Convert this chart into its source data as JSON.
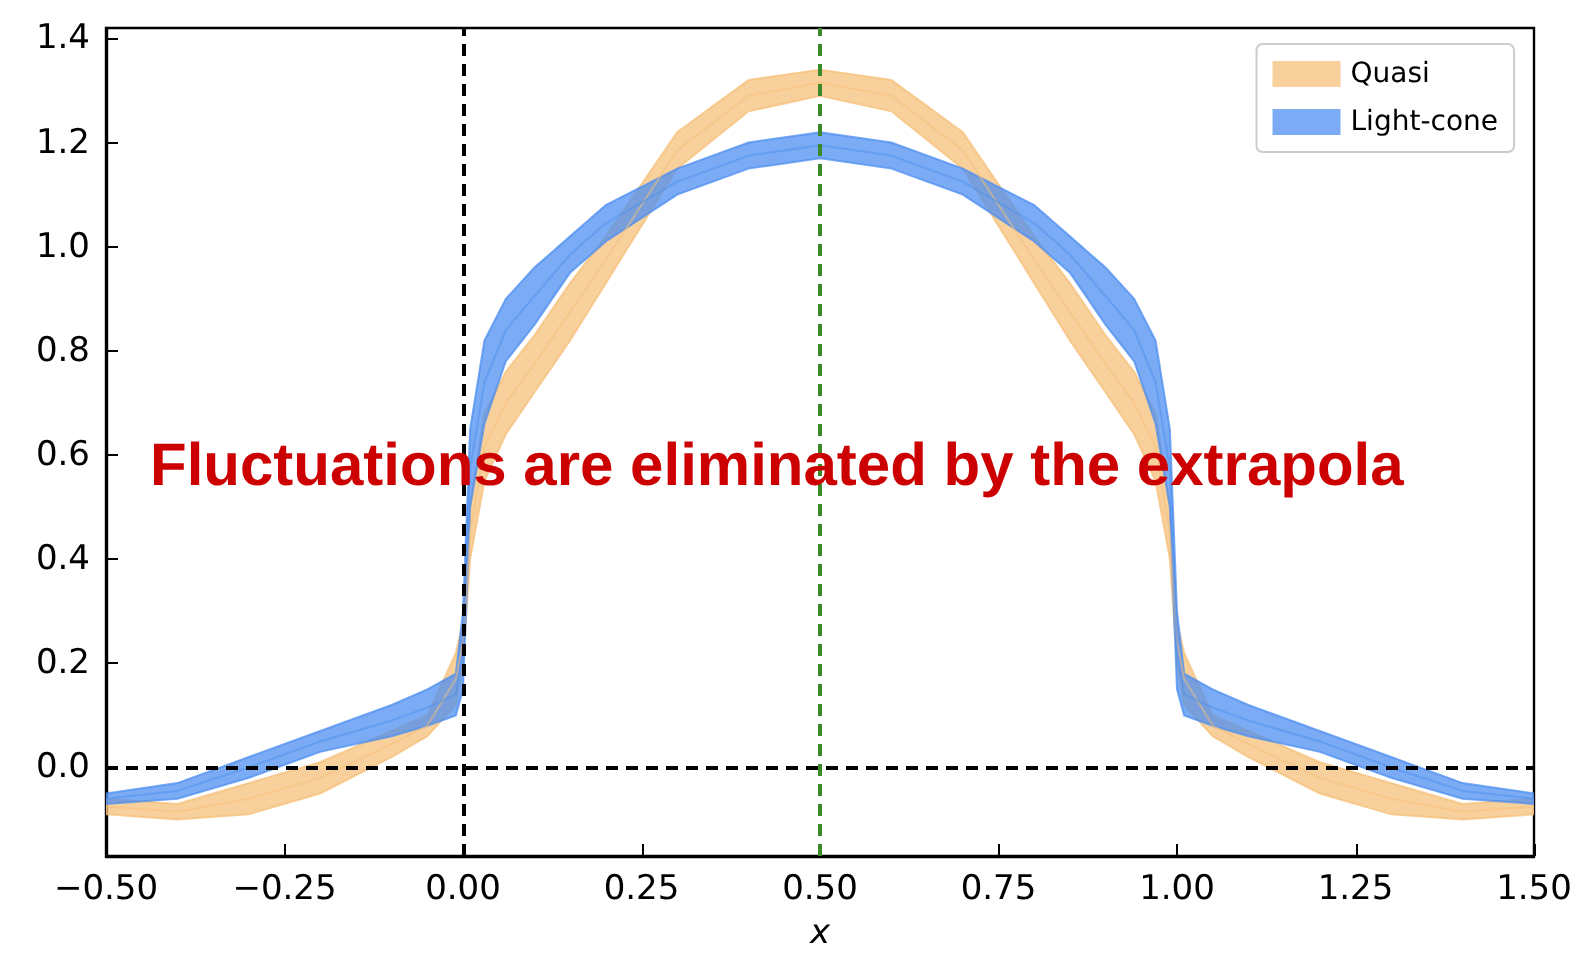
{
  "chart_data": {
    "type": "line",
    "xlabel": "x",
    "annotations": [
      "Fluctuations are eliminated by the extrapola"
    ],
    "x": [
      -0.5,
      -0.4,
      -0.3,
      -0.2,
      -0.1,
      -0.05,
      -0.01,
      0,
      0.01,
      0.03,
      0.06,
      0.1,
      0.15,
      0.2,
      0.3,
      0.4,
      0.5,
      0.6,
      0.7,
      0.8,
      0.85,
      0.9,
      0.94,
      0.97,
      0.99,
      1,
      1.01,
      1.05,
      1.1,
      1.2,
      1.3,
      1.4,
      1.5
    ],
    "series": [
      {
        "name": "Quasi",
        "color": "#f5c07a",
        "values": [
          -0.075,
          -0.085,
          -0.06,
          -0.02,
          0.045,
          0.08,
          0.17,
          0.24,
          0.45,
          0.615,
          0.7,
          0.775,
          0.875,
          0.975,
          1.185,
          1.29,
          1.315,
          1.29,
          1.185,
          0.975,
          0.875,
          0.775,
          0.7,
          0.615,
          0.45,
          0.24,
          0.17,
          0.08,
          0.045,
          -0.02,
          -0.06,
          -0.085,
          -0.075
        ],
        "lower": [
          -0.09,
          -0.1,
          -0.09,
          -0.05,
          0.02,
          0.06,
          0.12,
          0.2,
          0.4,
          0.55,
          0.64,
          0.72,
          0.82,
          0.93,
          1.15,
          1.26,
          1.29,
          1.26,
          1.15,
          0.93,
          0.82,
          0.72,
          0.64,
          0.55,
          0.4,
          0.2,
          0.12,
          0.06,
          0.02,
          -0.05,
          -0.09,
          -0.1,
          -0.09
        ],
        "upper": [
          -0.06,
          -0.07,
          -0.03,
          0.01,
          0.07,
          0.1,
          0.22,
          0.28,
          0.5,
          0.68,
          0.76,
          0.83,
          0.93,
          1.02,
          1.22,
          1.32,
          1.34,
          1.32,
          1.22,
          1.02,
          0.93,
          0.83,
          0.76,
          0.68,
          0.5,
          0.28,
          0.22,
          0.1,
          0.07,
          0.01,
          -0.03,
          -0.07,
          -0.06
        ]
      },
      {
        "name": "Light-cone",
        "color": "#4d8ff0",
        "values": [
          -0.06,
          -0.045,
          0,
          0.05,
          0.09,
          0.115,
          0.14,
          0.225,
          0.575,
          0.74,
          0.84,
          0.905,
          0.985,
          1.045,
          1.125,
          1.175,
          1.195,
          1.175,
          1.125,
          1.045,
          0.985,
          0.905,
          0.84,
          0.74,
          0.575,
          0.225,
          0.14,
          0.115,
          0.09,
          0.05,
          0,
          -0.045,
          -0.06
        ],
        "lower": [
          -0.07,
          -0.06,
          -0.02,
          0.03,
          0.06,
          0.08,
          0.1,
          0.15,
          0.5,
          0.66,
          0.78,
          0.85,
          0.95,
          1.01,
          1.1,
          1.15,
          1.17,
          1.15,
          1.1,
          1.01,
          0.95,
          0.85,
          0.78,
          0.66,
          0.5,
          0.15,
          0.1,
          0.08,
          0.06,
          0.03,
          -0.02,
          -0.06,
          -0.07
        ],
        "upper": [
          -0.05,
          -0.03,
          0.02,
          0.07,
          0.12,
          0.15,
          0.18,
          0.3,
          0.65,
          0.82,
          0.9,
          0.96,
          1.02,
          1.08,
          1.15,
          1.2,
          1.22,
          1.2,
          1.15,
          1.08,
          1.02,
          0.96,
          0.9,
          0.82,
          0.65,
          0.3,
          0.18,
          0.15,
          0.12,
          0.07,
          0.02,
          -0.03,
          -0.05
        ]
      }
    ],
    "xlim": [
      -0.5,
      1.5
    ],
    "ylim": [
      -0.17,
      1.42
    ],
    "xticks": [
      {
        "value": -0.5,
        "label": "−0.50"
      },
      {
        "value": -0.25,
        "label": "−0.25"
      },
      {
        "value": 0,
        "label": "0.00"
      },
      {
        "value": 0.25,
        "label": "0.25"
      },
      {
        "value": 0.5,
        "label": "0.50"
      },
      {
        "value": 0.75,
        "label": "0.75"
      },
      {
        "value": 1,
        "label": "1.00"
      },
      {
        "value": 1.25,
        "label": "1.25"
      },
      {
        "value": 1.5,
        "label": "1.50"
      }
    ],
    "yticks": [
      {
        "value": 0,
        "label": "0.0"
      },
      {
        "value": 0.2,
        "label": "0.2"
      },
      {
        "value": 0.4,
        "label": "0.4"
      },
      {
        "value": 0.6,
        "label": "0.6"
      },
      {
        "value": 0.8,
        "label": "0.8"
      },
      {
        "value": 1,
        "label": "1.0"
      },
      {
        "value": 1.2,
        "label": "1.2"
      },
      {
        "value": 1.4,
        "label": "1.4"
      }
    ],
    "ref_lines": [
      {
        "axis": "y",
        "value": 0,
        "color": "#000000",
        "line_style": "dashed"
      },
      {
        "axis": "x",
        "value": 0,
        "color": "#000000",
        "line_style": "dashed"
      },
      {
        "axis": "x",
        "value": 0.5,
        "color": "#3a8a2a",
        "line_style": "dashed"
      }
    ],
    "legend": "top right",
    "grid": false
  }
}
